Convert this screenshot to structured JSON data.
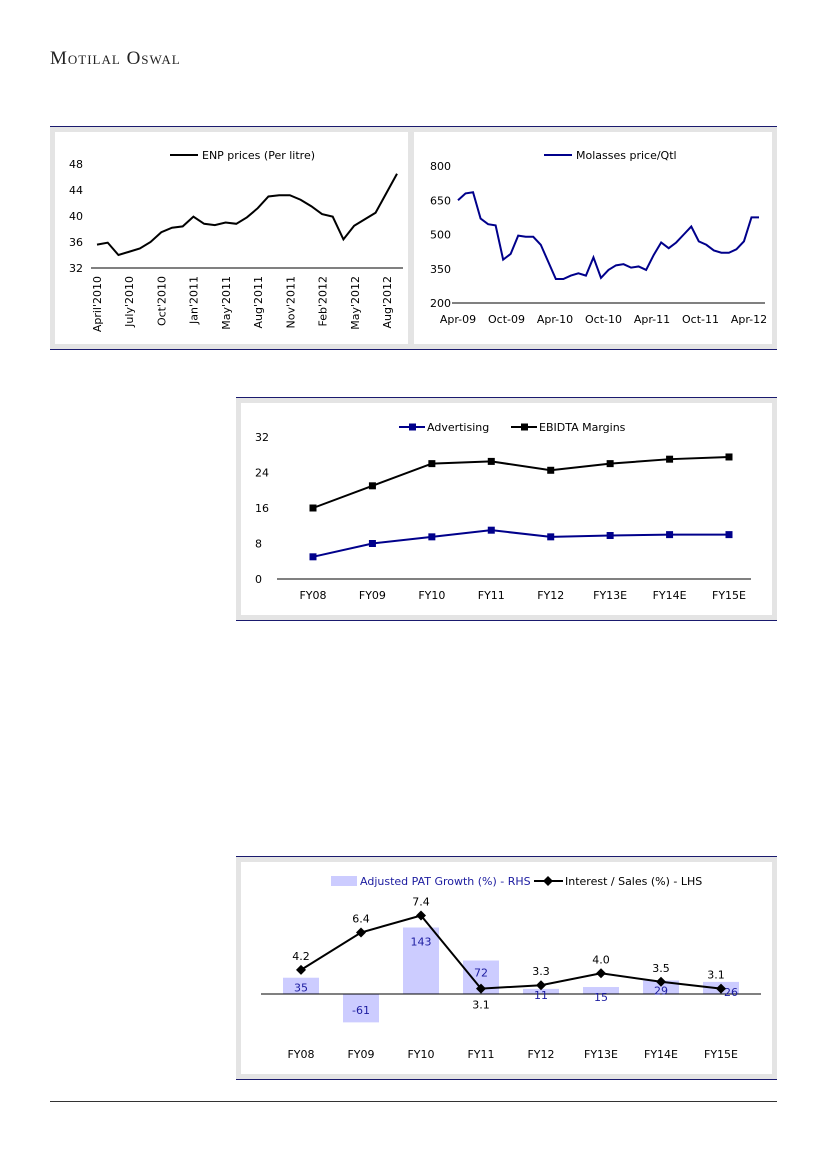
{
  "header": {
    "brand": "Motilal Oswal"
  },
  "colors": {
    "navy": "#00008b",
    "black": "#000000",
    "bar": "#ccccff",
    "frame": "#1a1a6e"
  },
  "chart_data": [
    {
      "id": "enp",
      "type": "line",
      "legend": "ENP prices (Per litre)",
      "ylim": [
        32,
        48
      ],
      "yticks": [
        "32",
        "36",
        "40",
        "44",
        "48"
      ],
      "xticks": [
        "April'2010",
        "July'2010",
        "Oct'2010",
        "Jan'2011",
        "May'2011",
        "Aug'2011",
        "Nov'2011",
        "Feb'2012",
        "May'2012",
        "Aug'2012"
      ],
      "values": [
        35.6,
        35.9,
        34.0,
        34.5,
        35.0,
        36.0,
        37.5,
        38.2,
        38.4,
        39.9,
        38.8,
        38.6,
        39.0,
        38.8,
        39.8,
        41.2,
        43.0,
        43.2,
        43.2,
        42.5,
        41.5,
        40.3,
        39.9,
        36.4,
        38.5,
        39.5,
        40.5,
        43.5,
        46.5
      ],
      "color": "#000000"
    },
    {
      "id": "molasses",
      "type": "line",
      "legend": "Molasses price/Qtl",
      "ylim": [
        200,
        800
      ],
      "yticks": [
        "200",
        "350",
        "500",
        "650",
        "800"
      ],
      "xticks": [
        "Apr-09",
        "Oct-09",
        "Apr-10",
        "Oct-10",
        "Apr-11",
        "Oct-11",
        "Apr-12"
      ],
      "values": [
        650,
        680,
        685,
        570,
        545,
        540,
        390,
        415,
        495,
        490,
        490,
        455,
        380,
        305,
        305,
        320,
        330,
        320,
        400,
        310,
        345,
        365,
        370,
        355,
        360,
        345,
        410,
        465,
        440,
        465,
        500,
        535,
        470,
        455,
        430,
        420,
        420,
        435,
        470,
        575,
        575
      ],
      "color": "#00008b"
    },
    {
      "id": "adv",
      "type": "line",
      "categories": [
        "FY08",
        "FY09",
        "FY10",
        "FY11",
        "FY12",
        "FY13E",
        "FY14E",
        "FY15E"
      ],
      "ylim": [
        0,
        32
      ],
      "yticks": [
        "0",
        "8",
        "16",
        "24",
        "32"
      ],
      "series": [
        {
          "name": "Advertising",
          "values": [
            5,
            8,
            9.5,
            11,
            9.5,
            9.8,
            10,
            10
          ],
          "color": "#00008b"
        },
        {
          "name": "EBIDTA Margins",
          "values": [
            16,
            21,
            26,
            26.5,
            24.5,
            26,
            27,
            27.5
          ],
          "color": "#000000"
        }
      ]
    },
    {
      "id": "pat",
      "type": "bar+line",
      "categories": [
        "FY08",
        "FY09",
        "FY10",
        "FY11",
        "FY12",
        "FY13E",
        "FY14E",
        "FY15E"
      ],
      "series": [
        {
          "name": "Adjusted PAT Growth (%) - RHS",
          "type": "bar",
          "values": [
            35,
            -61,
            143,
            72,
            11,
            15,
            29,
            26
          ],
          "color": "#ccccff"
        },
        {
          "name": "Interest / Sales (%) - LHS",
          "type": "line",
          "values": [
            4.2,
            6.4,
            7.4,
            3.1,
            3.3,
            4.0,
            3.5,
            3.1
          ],
          "color": "#000000"
        }
      ]
    }
  ]
}
